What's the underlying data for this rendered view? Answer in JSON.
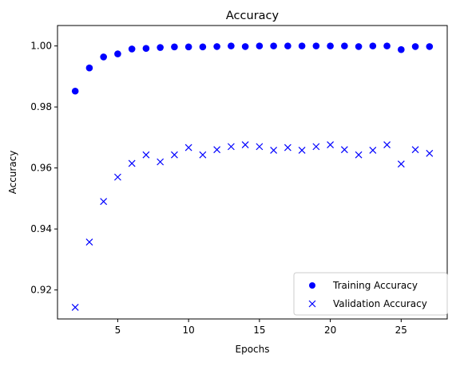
{
  "chart_data": {
    "type": "scatter",
    "title": "Accuracy",
    "xlabel": "Epochs",
    "ylabel": "Accuracy",
    "xlim": [
      0.75,
      28.25
    ],
    "ylim": [
      0.9105,
      1.0067
    ],
    "xticks": [
      5,
      10,
      15,
      20,
      25
    ],
    "xtick_labels": [
      "5",
      "10",
      "15",
      "20",
      "25"
    ],
    "yticks": [
      0.92,
      0.94,
      0.96,
      0.98,
      1.0
    ],
    "ytick_labels": [
      "0.92",
      "0.94",
      "0.96",
      "0.98",
      "1.00"
    ],
    "grid": false,
    "legend_position": "lower right",
    "x": [
      2,
      3,
      4,
      5,
      6,
      7,
      8,
      9,
      10,
      11,
      12,
      13,
      14,
      15,
      16,
      17,
      18,
      19,
      20,
      21,
      22,
      23,
      24,
      25,
      26,
      27
    ],
    "series": [
      {
        "name": "Training Accuracy",
        "marker": "circle",
        "color": "#0000ff",
        "values": [
          0.9852,
          0.9928,
          0.9964,
          0.9974,
          0.999,
          0.9992,
          0.9995,
          0.9997,
          0.9997,
          0.9997,
          0.9998,
          1.0,
          0.9998,
          1.0,
          1.0,
          1.0,
          1.0,
          1.0,
          1.0,
          1.0,
          0.9998,
          1.0,
          1.0,
          0.9988,
          0.9998,
          0.9998
        ]
      },
      {
        "name": "Validation Accuracy",
        "marker": "x",
        "color": "#0000ff",
        "values": [
          0.9143,
          0.9357,
          0.949,
          0.957,
          0.9615,
          0.9643,
          0.962,
          0.9643,
          0.9667,
          0.9643,
          0.966,
          0.967,
          0.9676,
          0.967,
          0.9658,
          0.9667,
          0.9658,
          0.967,
          0.9676,
          0.966,
          0.9643,
          0.9658,
          0.9676,
          0.9613,
          0.966,
          0.9648
        ]
      }
    ]
  }
}
